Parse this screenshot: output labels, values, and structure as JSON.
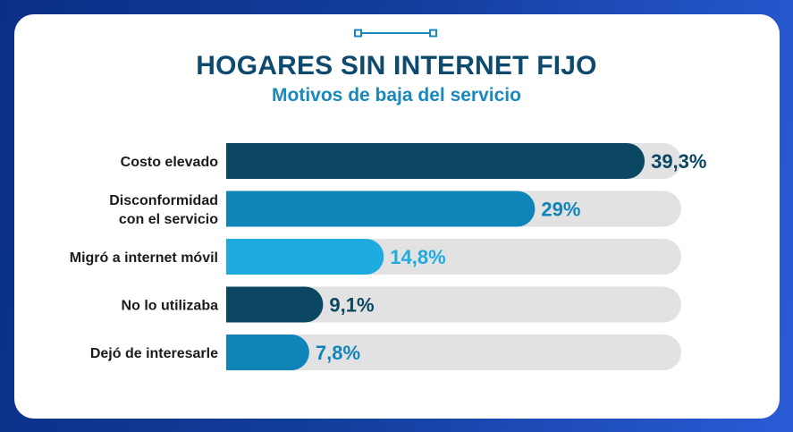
{
  "header": {
    "title": "HOGARES SIN INTERNET FIJO",
    "subtitle": "Motivos de baja del servicio"
  },
  "colors": {
    "track": "#e2e2e2",
    "title": "#0d4a6e",
    "subtitle": "#1a88bb"
  },
  "chart_data": {
    "type": "bar",
    "orientation": "horizontal",
    "title": "HOGARES SIN INTERNET FIJO",
    "subtitle": "Motivos de baja del servicio",
    "xlim": [
      0,
      100
    ],
    "unit": "%",
    "categories": [
      [
        "Costo elevado"
      ],
      [
        "Disconformidad",
        "con el servicio"
      ],
      [
        "Migró a internet móvil"
      ],
      [
        "No lo utilizaba"
      ],
      [
        "Dejó de interesarle"
      ]
    ],
    "values": [
      39.3,
      29,
      14.8,
      9.1,
      7.8
    ],
    "value_labels": [
      "39,3%",
      "29%",
      "14,8%",
      "9,1%",
      "7,8%"
    ],
    "bar_colors": [
      "#0b4663",
      "#0f84b8",
      "#1eabdf",
      "#0b4663",
      "#0f84b8"
    ],
    "label_colors": [
      "#0b4663",
      "#0f84b8",
      "#1eabdf",
      "#0b4663",
      "#0f84b8"
    ]
  }
}
